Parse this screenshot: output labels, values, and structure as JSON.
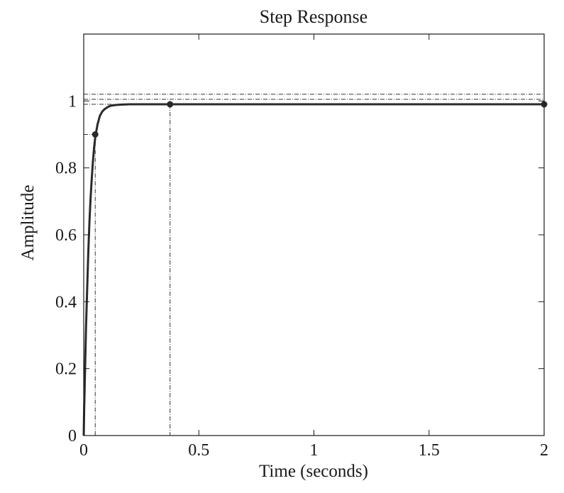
{
  "chart_data": {
    "type": "line",
    "title": "Step Response",
    "xlabel": "Time (seconds)",
    "ylabel": "Amplitude",
    "xlim": [
      0,
      2
    ],
    "ylim": [
      0,
      1.2
    ],
    "x_ticks": [
      "0",
      "0.5",
      "1",
      "1.5",
      "2"
    ],
    "y_ticks": [
      "0",
      "0.2",
      "0.4",
      "0.6",
      "0.8",
      "1"
    ],
    "x_tick_values": [
      0,
      0.5,
      1,
      1.5,
      2
    ],
    "y_tick_values": [
      0,
      0.2,
      0.4,
      0.6,
      0.8,
      1
    ],
    "grid": false,
    "legend": "none",
    "series": [
      {
        "x": [
          0,
          0.002,
          0.005,
          0.01,
          0.015,
          0.02,
          0.025,
          0.03,
          0.035,
          0.04,
          0.045,
          0.05,
          0.055,
          0.06,
          0.07,
          0.08,
          0.09,
          0.1,
          0.11,
          0.12,
          0.14,
          0.16,
          0.2,
          0.3,
          0.38,
          0.5,
          1,
          1.5,
          2
        ],
        "y": [
          0,
          0.075,
          0.17,
          0.32,
          0.44,
          0.55,
          0.64,
          0.71,
          0.77,
          0.82,
          0.86,
          0.89,
          0.91,
          0.93,
          0.955,
          0.968,
          0.975,
          0.98,
          0.984,
          0.986,
          0.988,
          0.989,
          0.99,
          0.99,
          0.99,
          0.99,
          0.99,
          0.99,
          0.99
        ]
      }
    ],
    "characteristic_points": [
      {
        "x": 0.05,
        "y": 0.9
      },
      {
        "x": 0.375,
        "y": 0.99
      },
      {
        "x": 2,
        "y": 0.99
      }
    ],
    "reference_lines_y": [
      0.99,
      1.005,
      1.02
    ],
    "reference_lines_x": [
      0.05,
      0.375
    ]
  }
}
